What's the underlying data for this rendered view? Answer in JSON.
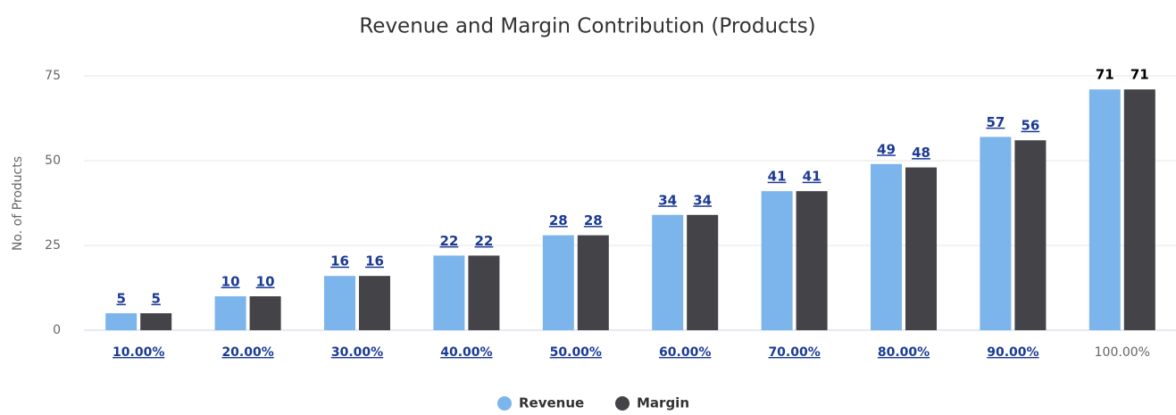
{
  "chart_data": {
    "type": "bar",
    "title": "Revenue and Margin Contribution (Products)",
    "y_axis_label": "No. of Products",
    "categories": [
      "10.00%",
      "20.00%",
      "30.00%",
      "40.00%",
      "50.00%",
      "60.00%",
      "70.00%",
      "80.00%",
      "90.00%",
      "100.00%"
    ],
    "series": [
      {
        "name": "Revenue",
        "color": "#7cb5ec",
        "values": [
          5,
          10,
          16,
          22,
          28,
          34,
          41,
          49,
          57,
          71
        ]
      },
      {
        "name": "Margin",
        "color": "#434348",
        "values": [
          5,
          10,
          16,
          22,
          28,
          34,
          41,
          48,
          56,
          71
        ]
      }
    ],
    "ylim": [
      0,
      75
    ],
    "yticks": [
      0,
      25,
      50,
      75
    ],
    "grid": true,
    "legend": "bottom"
  }
}
